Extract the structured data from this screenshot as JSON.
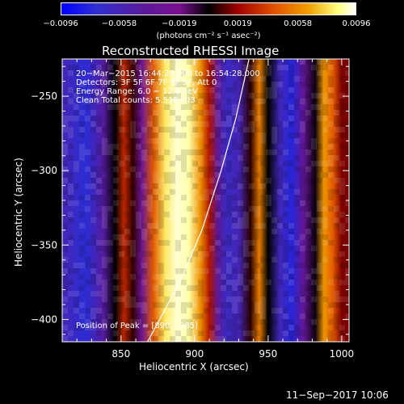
{
  "chart_data": {
    "type": "heatmap",
    "title": "Reconstructed RHESSI Image",
    "xlabel": "Heliocentric X (arcsec)",
    "ylabel": "Heliocentric Y (arcsec)",
    "xlim": [
      810,
      1005
    ],
    "ylim": [
      -415,
      -225
    ],
    "x_ticks": [
      850,
      900,
      950,
      1000
    ],
    "x_tick_labels": [
      "850",
      "900",
      "950",
      "1000"
    ],
    "y_ticks": [
      -250,
      -300,
      -350,
      -400
    ],
    "y_tick_labels": [
      "−250",
      "−300",
      "−350",
      "−400"
    ],
    "colorbar": {
      "min": -0.0096,
      "max": 0.0096,
      "ticks": [
        -0.0096,
        -0.0058,
        -0.0019,
        0.0019,
        0.0058,
        0.0096
      ],
      "tick_labels": [
        "−0.0096",
        "−0.0058",
        "−0.0019",
        "0.0019",
        "0.0058",
        "0.0096"
      ],
      "unit_line": "(photons cm⁻² s⁻¹ asec⁻²)"
    },
    "stripes": [
      {
        "x": 812,
        "value": -0.006
      },
      {
        "x": 826,
        "value": -0.0075
      },
      {
        "x": 838,
        "value": -0.0045
      },
      {
        "x": 846,
        "value": 0.0
      },
      {
        "x": 852,
        "value": 0.003
      },
      {
        "x": 858,
        "value": 0.0006
      },
      {
        "x": 864,
        "value": -0.003
      },
      {
        "x": 872,
        "value": 0.0045
      },
      {
        "x": 880,
        "value": 0.008
      },
      {
        "x": 888,
        "value": 0.0092
      },
      {
        "x": 896,
        "value": 0.0088
      },
      {
        "x": 904,
        "value": 0.006
      },
      {
        "x": 910,
        "value": 0.0025
      },
      {
        "x": 916,
        "value": -0.004
      },
      {
        "x": 922,
        "value": -0.0065
      },
      {
        "x": 930,
        "value": -0.0058
      },
      {
        "x": 938,
        "value": 0.0005
      },
      {
        "x": 944,
        "value": 0.0055
      },
      {
        "x": 950,
        "value": 0.0
      },
      {
        "x": 958,
        "value": -0.006
      },
      {
        "x": 966,
        "value": -0.0078
      },
      {
        "x": 974,
        "value": -0.0035
      },
      {
        "x": 982,
        "value": -0.0002
      },
      {
        "x": 988,
        "value": 0.0062
      },
      {
        "x": 994,
        "value": 0.0045
      },
      {
        "x": 1000,
        "value": 0.0015
      },
      {
        "x": 1005,
        "value": 0.0015
      }
    ],
    "limb_curve": [
      [
        868,
        -415
      ],
      [
        890,
        -375
      ],
      [
        905,
        -340
      ],
      [
        918,
        -300
      ],
      [
        928,
        -265
      ],
      [
        937,
        -225
      ]
    ],
    "annotations": [
      "20−Mar−2015 16:44:28.000 to 16:54:28.000",
      "Detectors: 3F 5F 6F 7F 8F 9F, Att 0",
      "Energy Range: 6.0 − 12.0 keV",
      "Clean      Total counts: 5.51E+03"
    ],
    "peak_label": "Position of Peak = [890,−285]",
    "footer_date": "11−Sep−2017 10:06"
  }
}
